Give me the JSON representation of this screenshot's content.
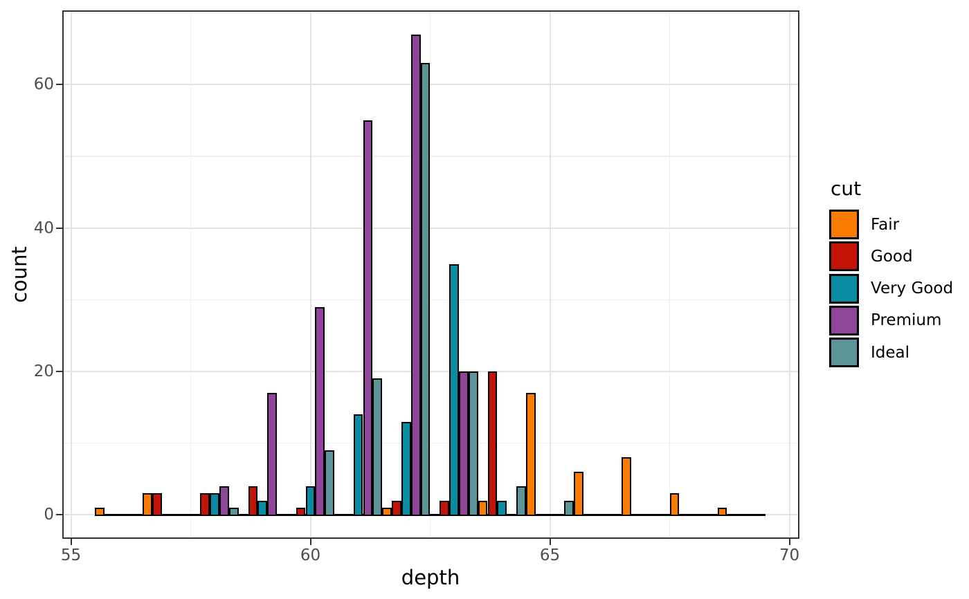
{
  "legend": {
    "title": "cut",
    "position": "right"
  },
  "chart_data": {
    "type": "bar",
    "subtype": "dodged-histogram",
    "title": "",
    "xlabel": "depth",
    "ylabel": "count",
    "bin_width": 1,
    "bin_centers": [
      56,
      57,
      58,
      59,
      60,
      61,
      62,
      63,
      64,
      65,
      66,
      67,
      68,
      69
    ],
    "series": [
      {
        "name": "Fair",
        "color": "#FB7B00",
        "values": [
          1,
          3,
          0,
          0,
          0,
          0,
          1,
          0,
          2,
          17,
          6,
          8,
          3,
          1
        ]
      },
      {
        "name": "Good",
        "color": "#C31206",
        "values": [
          0,
          3,
          3,
          4,
          1,
          0,
          2,
          2,
          20,
          0,
          0,
          0,
          0,
          0
        ]
      },
      {
        "name": "Very Good",
        "color": "#0B8CA3",
        "values": [
          0,
          0,
          3,
          2,
          4,
          14,
          13,
          35,
          2,
          0,
          0,
          0,
          0,
          0
        ]
      },
      {
        "name": "Premium",
        "color": "#8F4599",
        "values": [
          0,
          0,
          4,
          17,
          29,
          55,
          67,
          20,
          0,
          0,
          0,
          0,
          0,
          0
        ]
      },
      {
        "name": "Ideal",
        "color": "#5B9598",
        "values": [
          0,
          0,
          1,
          0,
          9,
          19,
          63,
          20,
          4,
          2,
          0,
          0,
          0,
          0
        ]
      }
    ],
    "x_ticks": {
      "labels": [
        "55",
        "60",
        "65",
        "70"
      ],
      "values": [
        55,
        60,
        65,
        70
      ],
      "minor": [
        57.5,
        62.5,
        67.5
      ]
    },
    "y_ticks": {
      "labels": [
        "0",
        "20",
        "40",
        "60"
      ],
      "values": [
        0,
        20,
        40,
        60
      ],
      "minor": [
        10,
        30,
        50,
        70
      ]
    },
    "xlim": [
      54.82,
      70.21
    ],
    "ylim": [
      -3.35,
      70.35
    ],
    "baseline_extent": [
      55.5,
      69.5
    ],
    "grid": "on",
    "legend_position": "right"
  },
  "style": {
    "bar_border_color": "#000000",
    "panel_border_color": "#333333",
    "grid_major_color": "#E3E3E3",
    "grid_minor_color": "#EFEFEF",
    "tick_color": "#333333",
    "tick_label_color": "#4D4D4D",
    "text_color": "#000000",
    "background": "#FFFFFF"
  }
}
